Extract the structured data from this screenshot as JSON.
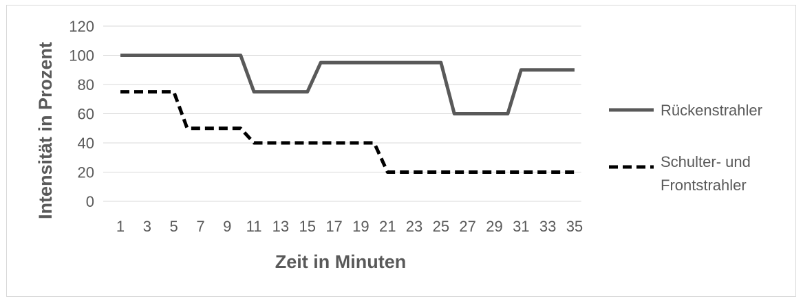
{
  "chart_data": {
    "type": "line",
    "title": "",
    "xlabel": "Zeit in Minuten",
    "ylabel": "Intensität in Prozent",
    "ylim": [
      0,
      120
    ],
    "yticks": [
      0,
      20,
      40,
      60,
      80,
      100,
      120
    ],
    "grid": true,
    "legend_placement": "right",
    "categories": [
      1,
      2,
      3,
      4,
      5,
      6,
      7,
      8,
      9,
      10,
      11,
      12,
      13,
      14,
      15,
      16,
      17,
      18,
      19,
      20,
      21,
      22,
      23,
      24,
      25,
      26,
      27,
      28,
      29,
      30,
      31,
      32,
      33,
      34,
      35
    ],
    "xtick_labels": [
      "1",
      "3",
      "5",
      "7",
      "9",
      "11",
      "13",
      "15",
      "17",
      "19",
      "21",
      "23",
      "25",
      "27",
      "29",
      "31",
      "33",
      "35"
    ],
    "series": [
      {
        "name": "Rückenstrahler",
        "style": "solid",
        "color": "#595959",
        "values": [
          100,
          100,
          100,
          100,
          100,
          100,
          100,
          100,
          100,
          100,
          75,
          75,
          75,
          75,
          75,
          95,
          95,
          95,
          95,
          95,
          95,
          95,
          95,
          95,
          95,
          60,
          60,
          60,
          60,
          60,
          90,
          90,
          90,
          90,
          90
        ]
      },
      {
        "name": "Schulter- und Frontstrahler",
        "style": "dashed",
        "color": "#000000",
        "values": [
          75,
          75,
          75,
          75,
          75,
          50,
          50,
          50,
          50,
          50,
          40,
          40,
          40,
          40,
          40,
          40,
          40,
          40,
          40,
          40,
          20,
          20,
          20,
          20,
          20,
          20,
          20,
          20,
          20,
          20,
          20,
          20,
          20,
          20,
          20
        ]
      }
    ],
    "legend_lines": [
      [
        "Rückenstrahler"
      ],
      [
        "Schulter- und",
        "Frontstrahler"
      ]
    ],
    "gridline_color": "#d9d9d9"
  }
}
